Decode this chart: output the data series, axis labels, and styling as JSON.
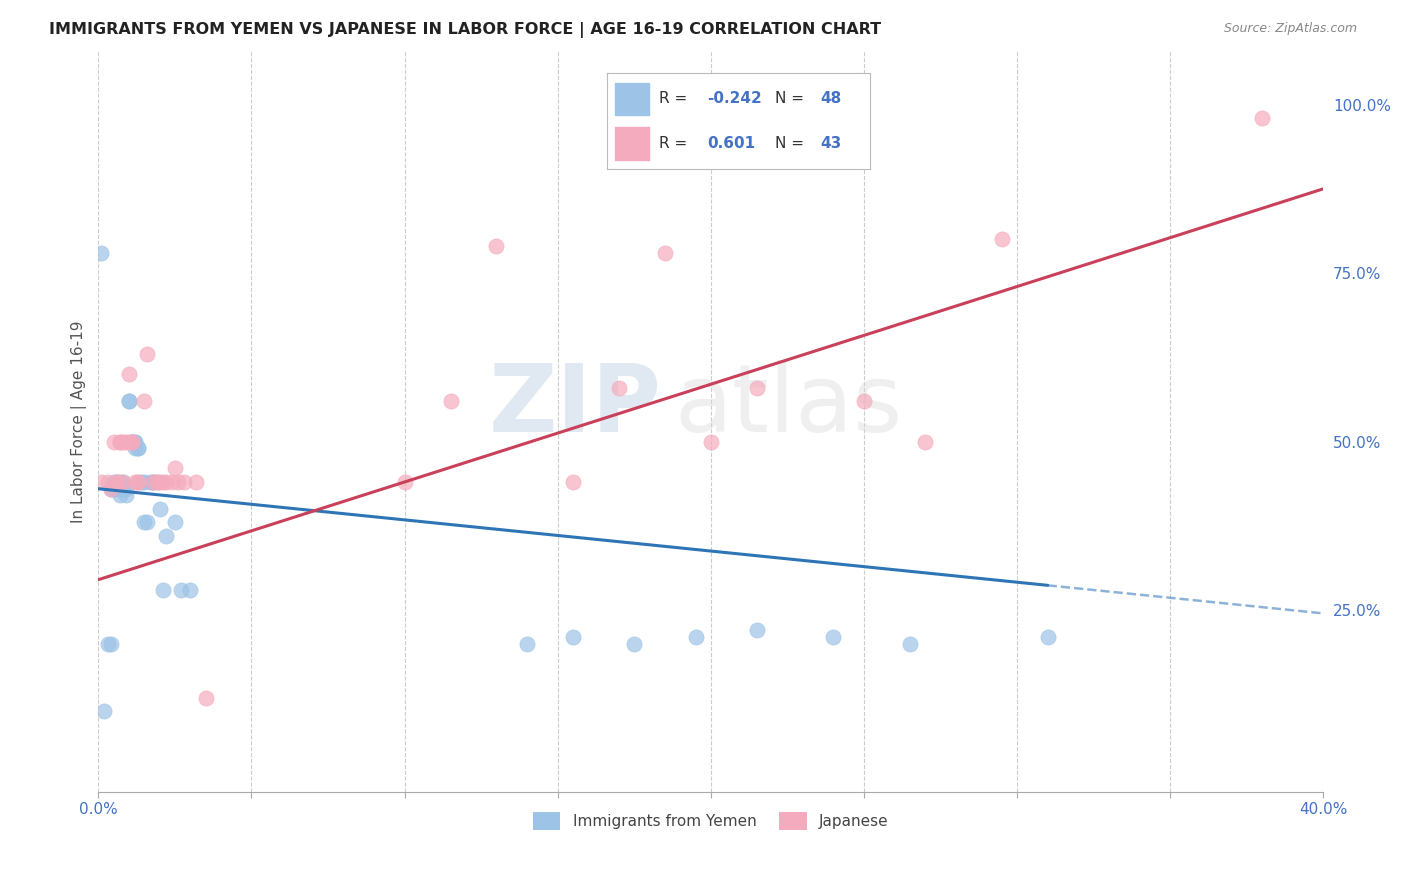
{
  "title": "IMMIGRANTS FROM YEMEN VS JAPANESE IN LABOR FORCE | AGE 16-19 CORRELATION CHART",
  "source": "Source: ZipAtlas.com",
  "ylabel": "In Labor Force | Age 16-19",
  "legend_label1": "Immigrants from Yemen",
  "legend_label2": "Japanese",
  "r1": "-0.242",
  "n1": "48",
  "r2": "0.601",
  "n2": "43",
  "color1": "#9DC3E6",
  "color2": "#F4ABBD",
  "line_color1": "#2E75B6",
  "line_color2": "#C9405A",
  "watermark_zip": "ZIP",
  "watermark_atlas": "atlas",
  "xlim": [
    0.0,
    0.4
  ],
  "ylim": [
    -0.02,
    1.08
  ],
  "right_yticks": [
    0.25,
    0.5,
    0.75,
    1.0
  ],
  "right_yticklabels": [
    "25.0%",
    "50.0%",
    "75.0%",
    "100.0%"
  ],
  "xtick_positions": [
    0.0,
    0.05,
    0.1,
    0.15,
    0.2,
    0.25,
    0.3,
    0.35,
    0.4
  ],
  "scatter_yemen_x": [
    0.001,
    0.002,
    0.003,
    0.004,
    0.004,
    0.005,
    0.005,
    0.006,
    0.006,
    0.007,
    0.007,
    0.007,
    0.008,
    0.008,
    0.009,
    0.009,
    0.01,
    0.01,
    0.011,
    0.011,
    0.011,
    0.012,
    0.012,
    0.012,
    0.013,
    0.013,
    0.014,
    0.015,
    0.015,
    0.016,
    0.017,
    0.018,
    0.018,
    0.019,
    0.02,
    0.021,
    0.022,
    0.025,
    0.027,
    0.03,
    0.14,
    0.155,
    0.175,
    0.195,
    0.215,
    0.24,
    0.265,
    0.31
  ],
  "scatter_yemen_y": [
    0.78,
    0.1,
    0.2,
    0.2,
    0.43,
    0.44,
    0.43,
    0.44,
    0.43,
    0.44,
    0.43,
    0.42,
    0.43,
    0.44,
    0.43,
    0.42,
    0.56,
    0.56,
    0.5,
    0.5,
    0.5,
    0.5,
    0.5,
    0.49,
    0.49,
    0.49,
    0.44,
    0.44,
    0.38,
    0.38,
    0.44,
    0.44,
    0.44,
    0.44,
    0.4,
    0.28,
    0.36,
    0.38,
    0.28,
    0.28,
    0.2,
    0.21,
    0.2,
    0.21,
    0.22,
    0.21,
    0.2,
    0.21
  ],
  "scatter_japanese_x": [
    0.001,
    0.003,
    0.004,
    0.005,
    0.006,
    0.006,
    0.007,
    0.007,
    0.008,
    0.008,
    0.009,
    0.01,
    0.01,
    0.011,
    0.011,
    0.012,
    0.013,
    0.013,
    0.015,
    0.016,
    0.018,
    0.019,
    0.02,
    0.021,
    0.022,
    0.024,
    0.025,
    0.026,
    0.028,
    0.032,
    0.035,
    0.1,
    0.115,
    0.13,
    0.155,
    0.17,
    0.185,
    0.2,
    0.215,
    0.25,
    0.27,
    0.295,
    0.38
  ],
  "scatter_japanese_y": [
    0.44,
    0.44,
    0.43,
    0.5,
    0.44,
    0.44,
    0.5,
    0.5,
    0.44,
    0.5,
    0.5,
    0.5,
    0.6,
    0.5,
    0.5,
    0.44,
    0.44,
    0.44,
    0.56,
    0.63,
    0.44,
    0.44,
    0.44,
    0.44,
    0.44,
    0.44,
    0.46,
    0.44,
    0.44,
    0.44,
    0.12,
    0.44,
    0.56,
    0.79,
    0.44,
    0.58,
    0.78,
    0.5,
    0.58,
    0.56,
    0.5,
    0.8,
    0.98
  ],
  "trend_yemen_x0": 0.0,
  "trend_yemen_x1": 0.4,
  "trend_yemen_y0": 0.43,
  "trend_yemen_y1": 0.245,
  "trend_solid_end": 0.31,
  "trend_japanese_x0": 0.0,
  "trend_japanese_x1": 0.4,
  "trend_japanese_y0": 0.295,
  "trend_japanese_y1": 0.875
}
